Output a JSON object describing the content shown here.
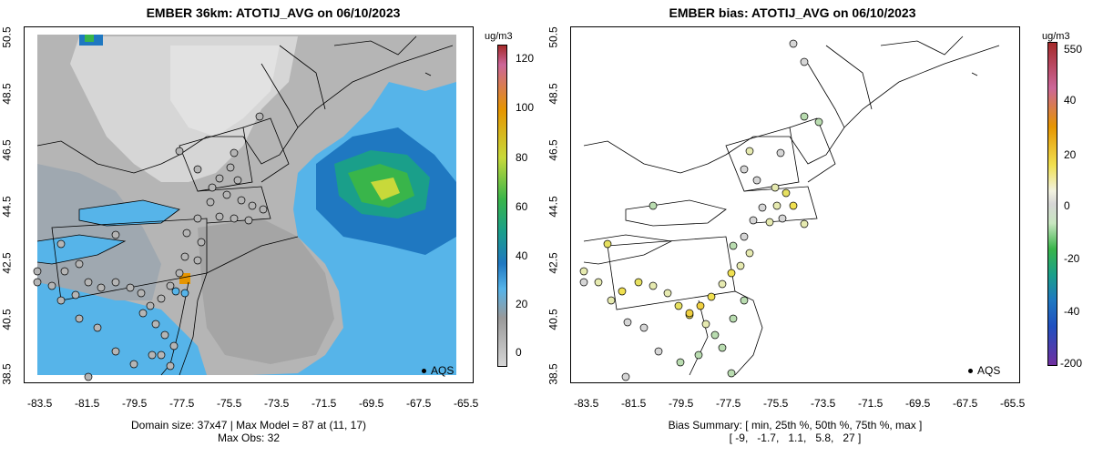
{
  "left": {
    "title": "EMBER 36km: ATOTIJ_AVG on 06/10/2023",
    "caption_line1": "Domain size: 37x47 | Max Model = 87 at (11, 17)",
    "caption_line2": "Max Obs: 32",
    "colorbar_unit": "ug/m3",
    "colorbar_ticks": [
      "120",
      "100",
      "80",
      "60",
      "40",
      "20",
      "0"
    ],
    "legend": "AQS"
  },
  "right": {
    "title": "EMBER bias: ATOTIJ_AVG on 06/10/2023",
    "caption_line1": "Bias Summary: [ min, 25th %, 50th %, 75th %, max ]",
    "caption_line2": "[ -9,   -1.7,   1.1,   5.8,   27 ]",
    "colorbar_unit": "ug/m3",
    "colorbar_ticks": [
      "550",
      "40",
      "20",
      "0",
      "-20",
      "-40",
      "-200"
    ],
    "legend": "AQS"
  },
  "axes": {
    "x_ticks": [
      "-83.5",
      "-81.5",
      "-79.5",
      "-77.5",
      "-75.5",
      "-73.5",
      "-71.5",
      "-69.5",
      "-67.5",
      "-65.5"
    ],
    "y_ticks": [
      "50.5",
      "48.5",
      "46.5",
      "44.5",
      "42.5",
      "40.5",
      "38.5"
    ]
  },
  "colors": {
    "water_blue": "#56b4e9",
    "deep_blue": "#1f78c1",
    "teal": "#1a9f8a",
    "green": "#39b54a",
    "yellow_green": "#c8d93a",
    "gray_dark": "#9a9a9a",
    "gray_mid": "#b5b5b5",
    "gray_light": "#d6d6d6",
    "orange": "#e69500"
  }
}
